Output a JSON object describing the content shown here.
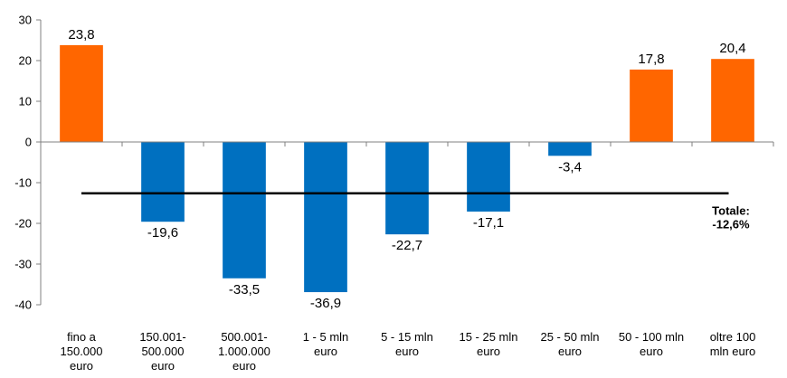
{
  "chart_data": {
    "type": "bar",
    "categories": [
      [
        "fino a",
        "150.000",
        "euro"
      ],
      [
        "150.001-",
        "500.000",
        "euro"
      ],
      [
        "500.001-",
        "1.000.000",
        "euro"
      ],
      [
        "1 - 5 mln",
        "euro"
      ],
      [
        "5 - 15 mln",
        "euro"
      ],
      [
        "15 - 25 mln",
        "euro"
      ],
      [
        "25 - 50 mln",
        "euro"
      ],
      [
        "50 - 100 mln",
        "euro"
      ],
      [
        "oltre 100",
        "mln euro"
      ]
    ],
    "values": [
      23.8,
      -19.6,
      -33.5,
      -36.9,
      -22.7,
      -17.1,
      -3.4,
      17.8,
      20.4
    ],
    "value_labels": [
      "23,8",
      "-19,6",
      "-33,5",
      "-36,9",
      "-22,7",
      "-17,1",
      "-3,4",
      "17,8",
      "20,4"
    ],
    "colors": {
      "positive": "#FF6600",
      "negative": "#0070C0",
      "total_line": "#000000",
      "axis": "#808080"
    },
    "ylim": [
      -40,
      30
    ],
    "yticks": [
      30,
      20,
      10,
      0,
      -10,
      -20,
      -30,
      -40
    ],
    "reference_line": {
      "value": -12.6,
      "label_lines": [
        "Totale:",
        "-12,6%"
      ]
    },
    "title": "",
    "xlabel": "",
    "ylabel": "",
    "grid": false,
    "legend": "none"
  }
}
